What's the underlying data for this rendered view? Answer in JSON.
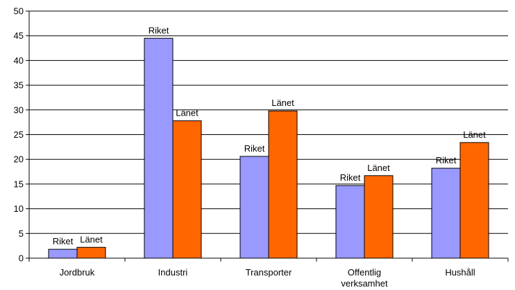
{
  "chart_data": {
    "type": "bar",
    "categories": [
      "Jordbruk",
      "Industri",
      "Transporter",
      "Offentlig verksamhet",
      "Hushåll"
    ],
    "category_lines": [
      [
        "Jordbruk"
      ],
      [
        "Industri"
      ],
      [
        "Transporter"
      ],
      [
        "Offentlig",
        "verksamhet"
      ],
      [
        "Hushåll"
      ]
    ],
    "series": [
      {
        "name": "Riket",
        "values": [
          1.8,
          44.5,
          20.6,
          14.7,
          18.2
        ],
        "color": "#9999ff"
      },
      {
        "name": "Länet",
        "values": [
          2.2,
          27.8,
          29.8,
          16.7,
          23.4
        ],
        "color": "#ff6600"
      }
    ],
    "data_labels": [
      "Riket",
      "Länet"
    ],
    "ylim": [
      0,
      50
    ],
    "yticks": [
      0,
      5,
      10,
      15,
      20,
      25,
      30,
      35,
      40,
      45,
      50
    ],
    "grid": true,
    "title": "",
    "xlabel": "",
    "ylabel": ""
  }
}
